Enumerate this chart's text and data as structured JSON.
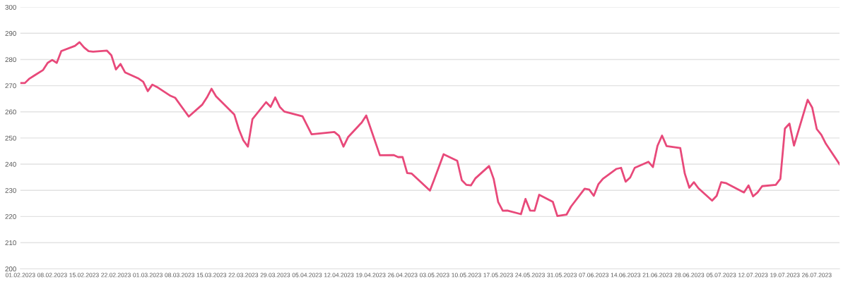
{
  "chart_data": {
    "type": "line",
    "x": [
      "2023-02-01",
      "2023-02-02",
      "2023-02-03",
      "2023-02-04",
      "2023-02-06",
      "2023-02-07",
      "2023-02-08",
      "2023-02-09",
      "2023-02-10",
      "2023-02-13",
      "2023-02-14",
      "2023-02-15",
      "2023-02-16",
      "2023-02-17",
      "2023-02-20",
      "2023-02-21",
      "2023-02-22",
      "2023-02-23",
      "2023-02-24",
      "2023-02-27",
      "2023-02-28",
      "2023-03-01",
      "2023-03-02",
      "2023-03-03",
      "2023-03-06",
      "2023-03-07",
      "2023-03-09",
      "2023-03-10",
      "2023-03-13",
      "2023-03-14",
      "2023-03-15",
      "2023-03-16",
      "2023-03-20",
      "2023-03-21",
      "2023-03-22",
      "2023-03-23",
      "2023-03-24",
      "2023-03-27",
      "2023-03-28",
      "2023-03-29",
      "2023-03-30",
      "2023-03-31",
      "2023-04-04",
      "2023-04-06",
      "2023-04-11",
      "2023-04-12",
      "2023-04-13",
      "2023-04-14",
      "2023-04-17",
      "2023-04-18",
      "2023-04-21",
      "2023-04-24",
      "2023-04-25",
      "2023-04-26",
      "2023-04-27",
      "2023-04-28",
      "2023-05-02",
      "2023-05-03",
      "2023-05-05",
      "2023-05-08",
      "2023-05-09",
      "2023-05-10",
      "2023-05-11",
      "2023-05-12",
      "2023-05-15",
      "2023-05-16",
      "2023-05-17",
      "2023-05-18",
      "2023-05-19",
      "2023-05-22",
      "2023-05-23",
      "2023-05-24",
      "2023-05-25",
      "2023-05-26",
      "2023-05-29",
      "2023-05-30",
      "2023-06-01",
      "2023-06-02",
      "2023-06-05",
      "2023-06-06",
      "2023-06-07",
      "2023-06-08",
      "2023-06-09",
      "2023-06-12",
      "2023-06-13",
      "2023-06-14",
      "2023-06-15",
      "2023-06-16",
      "2023-06-19",
      "2023-06-20",
      "2023-06-21",
      "2023-06-22",
      "2023-06-23",
      "2023-06-26",
      "2023-06-27",
      "2023-06-28",
      "2023-06-29",
      "2023-06-30",
      "2023-07-03",
      "2023-07-04",
      "2023-07-05",
      "2023-07-06",
      "2023-07-10",
      "2023-07-11",
      "2023-07-12",
      "2023-07-13",
      "2023-07-14",
      "2023-07-17",
      "2023-07-18",
      "2023-07-19",
      "2023-07-20",
      "2023-07-21",
      "2023-07-24",
      "2023-07-25",
      "2023-07-26",
      "2023-07-27",
      "2023-07-28",
      "2023-07-31"
    ],
    "series": [
      {
        "color": "#e8497a",
        "values": [
          271,
          271,
          272.7,
          273.8,
          276,
          278.7,
          279.8,
          278.7,
          283.2,
          285.2,
          286.6,
          284.6,
          283.2,
          283,
          283.4,
          281.6,
          276.2,
          278.3,
          275.1,
          272.7,
          271.5,
          267.9,
          270.4,
          269.5,
          266.1,
          265.4,
          260.6,
          258.2,
          262.8,
          265.5,
          268.8,
          265.9,
          259,
          253.4,
          249.1,
          246.7,
          257.2,
          263.7,
          261.9,
          265.5,
          261.9,
          260.1,
          258.3,
          251.4,
          252.3,
          250.9,
          246.7,
          250.3,
          255.9,
          258.6,
          243.4,
          243.5,
          242.7,
          242.7,
          236.6,
          236.4,
          229.9,
          234.4,
          243.8,
          241.3,
          233.9,
          232.1,
          231.9,
          234.6,
          239.3,
          234.4,
          225.5,
          222.2,
          222.3,
          220.9,
          226.7,
          222.3,
          222.2,
          228.3,
          225.6,
          220.2,
          220.7,
          223.8,
          230.6,
          230.3,
          227.9,
          232.3,
          234.4,
          238.2,
          238.6,
          233.3,
          234.9,
          238.6,
          240.9,
          238.9,
          247,
          250.9,
          246.9,
          246.2,
          236.4,
          231,
          233.1,
          230.8,
          226.1,
          227.9,
          233.1,
          232.8,
          229.2,
          231.9,
          227.7,
          229.2,
          231.6,
          232.1,
          234.4,
          253.6,
          255.5,
          247.1,
          264.6,
          261.6,
          253.4,
          251.2,
          247.8,
          240
        ]
      }
    ],
    "xlim": [
      "2023-02-01",
      "2023-07-31"
    ],
    "xticks": [
      {
        "value": "2023-02-01",
        "label": "01.02.2023"
      },
      {
        "value": "2023-02-08",
        "label": "08.02.2023"
      },
      {
        "value": "2023-02-15",
        "label": "15.02.2023"
      },
      {
        "value": "2023-02-22",
        "label": "22.02.2023"
      },
      {
        "value": "2023-03-01",
        "label": "01.03.2023"
      },
      {
        "value": "2023-03-08",
        "label": "08.03.2023"
      },
      {
        "value": "2023-03-15",
        "label": "15.03.2023"
      },
      {
        "value": "2023-03-22",
        "label": "22.03.2023"
      },
      {
        "value": "2023-03-29",
        "label": "29.03.2023"
      },
      {
        "value": "2023-04-05",
        "label": "05.04.2023"
      },
      {
        "value": "2023-04-12",
        "label": "12.04.2023"
      },
      {
        "value": "2023-04-19",
        "label": "19.04.2023"
      },
      {
        "value": "2023-04-26",
        "label": "26.04.2023"
      },
      {
        "value": "2023-05-03",
        "label": "03.05.2023"
      },
      {
        "value": "2023-05-10",
        "label": "10.05.2023"
      },
      {
        "value": "2023-05-17",
        "label": "17.05.2023"
      },
      {
        "value": "2023-05-24",
        "label": "24.05.2023"
      },
      {
        "value": "2023-05-31",
        "label": "31.05.2023"
      },
      {
        "value": "2023-06-07",
        "label": "07.06.2023"
      },
      {
        "value": "2023-06-14",
        "label": "14.06.2023"
      },
      {
        "value": "2023-06-21",
        "label": "21.06.2023"
      },
      {
        "value": "2023-06-28",
        "label": "28.06.2023"
      },
      {
        "value": "2023-07-05",
        "label": "05.07.2023"
      },
      {
        "value": "2023-07-12",
        "label": "12.07.2023"
      },
      {
        "value": "2023-07-19",
        "label": "19.07.2023"
      },
      {
        "value": "2023-07-26",
        "label": "26.07.2023"
      }
    ],
    "ylim": [
      200,
      300
    ],
    "yticks": [
      200,
      210,
      220,
      230,
      240,
      250,
      260,
      270,
      280,
      290,
      300
    ],
    "grid": "y",
    "marker": "none",
    "line_style": "solid"
  }
}
